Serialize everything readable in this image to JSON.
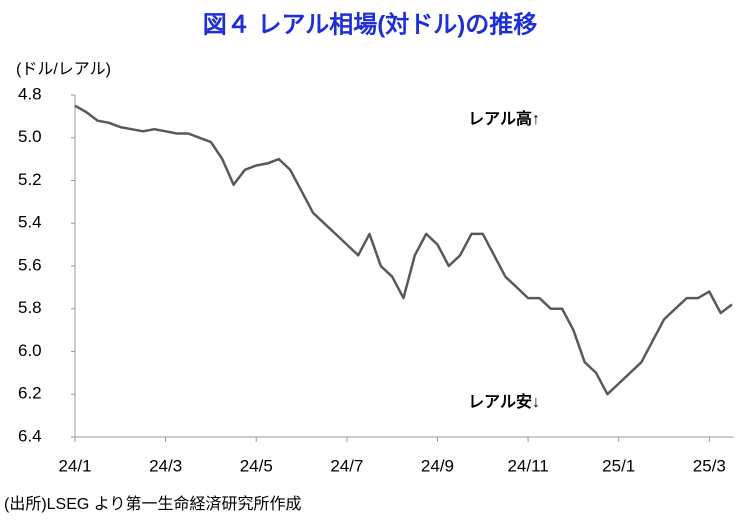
{
  "chart_data": {
    "type": "line",
    "title": "図４ レアル相場(対ドル)の推移",
    "y_axis_label": "(ドル/レアル)",
    "annotations": [
      "レアル高↑",
      "レアル安↓"
    ],
    "source": "(出所)LSEG より第一生命経済研究所作成",
    "categories": [
      "24/1",
      null,
      null,
      null,
      null,
      null,
      null,
      null,
      "24/3",
      null,
      null,
      null,
      null,
      null,
      null,
      null,
      "24/5",
      null,
      null,
      null,
      null,
      null,
      null,
      null,
      "24/7",
      null,
      null,
      null,
      null,
      null,
      null,
      null,
      "24/9",
      null,
      null,
      null,
      null,
      null,
      null,
      null,
      "24/11",
      null,
      null,
      null,
      null,
      null,
      null,
      null,
      "25/1",
      null,
      null,
      null,
      null,
      null,
      null,
      null,
      "25/3",
      null,
      null
    ],
    "series": [
      {
        "color": "#595959",
        "values": [
          4.85,
          4.88,
          4.92,
          4.93,
          4.95,
          4.96,
          4.97,
          4.96,
          4.97,
          4.98,
          4.98,
          5.0,
          5.02,
          5.1,
          5.22,
          5.15,
          5.13,
          5.12,
          5.1,
          5.15,
          5.25,
          5.35,
          5.4,
          5.45,
          5.5,
          5.55,
          5.45,
          5.6,
          5.65,
          5.75,
          5.55,
          5.45,
          5.5,
          5.6,
          5.55,
          5.45,
          5.45,
          5.55,
          5.65,
          5.7,
          5.75,
          5.75,
          5.8,
          5.8,
          5.9,
          6.05,
          6.1,
          6.2,
          6.15,
          6.1,
          6.05,
          5.95,
          5.85,
          5.8,
          5.75,
          5.75,
          5.72,
          5.82,
          5.78
        ]
      }
    ],
    "ylim": [
      4.8,
      6.4
    ],
    "y_inverted": true,
    "yticks": [
      4.8,
      {
        "value": 5,
        "label": "5.0"
      },
      5.2,
      5.4,
      5.6,
      5.8,
      {
        "value": 6,
        "label": "6.0"
      },
      6.2,
      6.4
    ],
    "grid": false
  }
}
